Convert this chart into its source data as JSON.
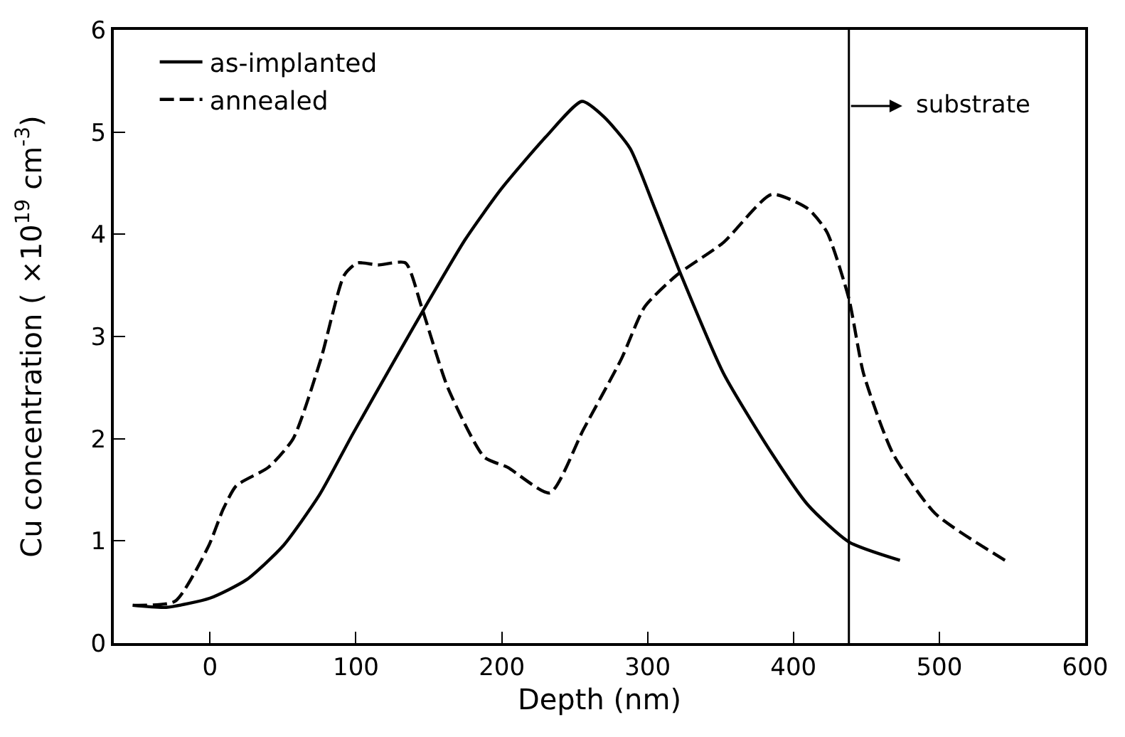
{
  "chart_data": {
    "type": "line",
    "xlabel": "Depth (nm)",
    "ylabel": "Cu concentration ( ×10$^{19}$ cm$^{-3}$)",
    "xlim": [
      -66,
      600
    ],
    "ylim": [
      0,
      6
    ],
    "xticks": [
      0,
      100,
      200,
      300,
      400,
      500,
      600
    ],
    "yticks": [
      0,
      1,
      2,
      3,
      4,
      5,
      6
    ],
    "grid": false,
    "legend": "top left",
    "marker": "none",
    "series": [
      {
        "name": "as-implanted",
        "color": "#000000",
        "line_style": "solid",
        "x": [
          -53,
          -30,
          0,
          25,
          50,
          75,
          98,
          127,
          150,
          175,
          200,
          230,
          255,
          270,
          288,
          305,
          323,
          352,
          385,
          410,
          438,
          473
        ],
        "values": [
          0.37,
          0.35,
          0.44,
          0.62,
          0.95,
          1.45,
          2.05,
          2.78,
          3.35,
          3.95,
          4.45,
          4.95,
          5.3,
          5.15,
          4.84,
          4.25,
          3.6,
          2.64,
          1.86,
          1.35,
          0.99,
          0.81
        ]
      },
      {
        "name": "annealed",
        "color": "#000000",
        "line_style": "dashed",
        "x": [
          -53,
          -24,
          -1,
          9,
          18,
          40,
          57,
          76,
          92,
          101,
          115,
          134,
          145,
          163,
          188,
          204,
          233,
          256,
          282,
          298,
          320,
          352,
          385,
          410,
          423,
          438,
          448,
          468,
          497,
          545
        ],
        "values": [
          0.37,
          0.41,
          0.95,
          1.31,
          1.54,
          1.72,
          2.0,
          2.78,
          3.6,
          3.72,
          3.7,
          3.72,
          3.29,
          2.5,
          1.82,
          1.72,
          1.47,
          2.09,
          2.78,
          3.29,
          3.6,
          3.92,
          4.39,
          4.25,
          4.02,
          3.37,
          2.64,
          1.86,
          1.27,
          0.81
        ]
      }
    ],
    "ref_lines": [
      {
        "axis": "x",
        "value": 438,
        "label": "substrate",
        "color": "#000000"
      }
    ]
  }
}
